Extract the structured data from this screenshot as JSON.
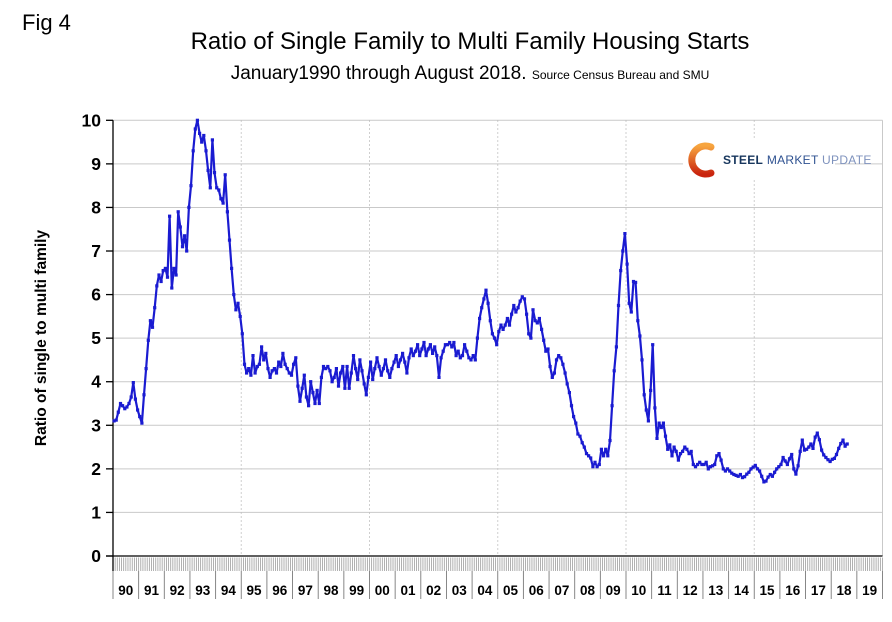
{
  "fig_label": "Fig 4",
  "title": "Ratio of Single Family to Multi Family Housing Starts",
  "subtitle": "January1990 through August 2018.",
  "source_note": "Source Census Bureau and SMU",
  "y_axis": {
    "title": "Ratio of single to multi family"
  },
  "logo": {
    "steel": "STEEL",
    "market": "MARKET",
    "update": "UPDATE"
  },
  "colors": {
    "line": "#1a1bd1",
    "grid": "#c9c9c9",
    "dotted_grid": "#bfbfbf",
    "axis": "#000000",
    "month_tick": "#9c9c9c",
    "year_separator": "#7a7a7a",
    "logo_steel": "#17365d",
    "logo_market": "#2f5291",
    "logo_update": "#7e92bd",
    "logo_swoosh_top": "#f7a53f",
    "logo_swoosh_bottom": "#c9240e"
  },
  "chart_data": {
    "type": "line",
    "title": "Ratio of Single Family to Multi Family Housing Starts",
    "subtitle": "January1990 through August 2018. Source Census Bureau and SMU",
    "ylabel": "Ratio of single to multi family",
    "xlabel": "",
    "frequency": "monthly",
    "start": {
      "year": 1990,
      "month": 1
    },
    "end": {
      "year": 2018,
      "month": 8
    },
    "ylim": [
      0,
      10
    ],
    "x_domain_years": [
      1990,
      2020
    ],
    "grid": {
      "horizontal_step": 1,
      "vertical_dotted_years": [
        1995,
        2000,
        2005,
        2010,
        2015
      ]
    },
    "legend_position": "none",
    "marker": "square",
    "y_tick_labels": [
      "0",
      "1",
      "2",
      "3",
      "4",
      "5",
      "6",
      "7",
      "8",
      "9",
      "10"
    ],
    "x_tick_labels": [
      "90",
      "91",
      "92",
      "93",
      "94",
      "95",
      "96",
      "97",
      "98",
      "99",
      "00",
      "01",
      "02",
      "03",
      "04",
      "05",
      "06",
      "07",
      "08",
      "09",
      "10",
      "11",
      "12",
      "13",
      "14",
      "15",
      "16",
      "17",
      "18",
      "19"
    ],
    "values": [
      3.1,
      3.12,
      3.3,
      3.5,
      3.45,
      3.38,
      3.42,
      3.5,
      3.65,
      3.98,
      3.6,
      3.35,
      3.2,
      3.05,
      3.7,
      4.3,
      4.95,
      5.4,
      5.25,
      5.7,
      6.2,
      6.45,
      6.3,
      6.55,
      6.6,
      6.4,
      7.8,
      6.15,
      6.6,
      6.45,
      7.9,
      7.55,
      7.1,
      7.35,
      7.0,
      8.0,
      8.5,
      9.3,
      9.8,
      10.0,
      9.7,
      9.5,
      9.65,
      9.3,
      8.85,
      8.45,
      9.55,
      8.8,
      8.45,
      8.4,
      8.2,
      8.1,
      8.75,
      7.9,
      7.25,
      6.6,
      6.0,
      5.65,
      5.8,
      5.5,
      5.1,
      4.4,
      4.2,
      4.3,
      4.15,
      4.6,
      4.2,
      4.35,
      4.4,
      4.8,
      4.5,
      4.65,
      4.3,
      4.1,
      4.25,
      4.3,
      4.2,
      4.45,
      4.35,
      4.65,
      4.4,
      4.3,
      4.2,
      4.15,
      4.4,
      4.55,
      3.9,
      3.55,
      3.85,
      4.15,
      3.65,
      3.45,
      4.0,
      3.75,
      3.5,
      3.8,
      3.5,
      4.1,
      4.35,
      4.3,
      4.35,
      4.25,
      4.0,
      4.1,
      4.3,
      3.9,
      4.2,
      4.35,
      3.85,
      4.35,
      3.85,
      4.2,
      4.6,
      4.3,
      4.05,
      4.5,
      4.25,
      3.95,
      3.7,
      4.1,
      4.45,
      4.05,
      4.3,
      4.55,
      4.35,
      4.15,
      4.3,
      4.5,
      4.25,
      4.1,
      4.3,
      4.45,
      4.6,
      4.35,
      4.5,
      4.65,
      4.45,
      4.2,
      4.55,
      4.75,
      4.6,
      4.7,
      4.85,
      4.6,
      4.75,
      4.9,
      4.6,
      4.75,
      4.85,
      4.65,
      4.8,
      4.6,
      4.1,
      4.55,
      4.7,
      4.85,
      4.85,
      4.9,
      4.8,
      4.9,
      4.6,
      4.7,
      4.55,
      4.6,
      4.85,
      4.7,
      4.55,
      4.5,
      4.6,
      4.5,
      5.0,
      5.45,
      5.7,
      5.9,
      6.1,
      5.8,
      5.4,
      5.1,
      5.0,
      4.85,
      5.15,
      5.3,
      5.2,
      5.3,
      5.45,
      5.3,
      5.55,
      5.75,
      5.6,
      5.7,
      5.85,
      5.95,
      5.9,
      5.55,
      5.1,
      5.0,
      5.65,
      5.4,
      5.35,
      5.45,
      5.2,
      4.95,
      4.7,
      4.75,
      4.35,
      4.1,
      4.2,
      4.5,
      4.6,
      4.55,
      4.4,
      4.2,
      3.95,
      3.75,
      3.45,
      3.2,
      3.05,
      2.8,
      2.75,
      2.6,
      2.5,
      2.35,
      2.3,
      2.25,
      2.05,
      2.15,
      2.05,
      2.1,
      2.45,
      2.3,
      2.45,
      2.3,
      2.65,
      3.45,
      4.25,
      4.8,
      5.75,
      6.55,
      7.0,
      7.4,
      6.7,
      5.8,
      5.6,
      6.3,
      6.28,
      5.4,
      5.05,
      4.5,
      3.7,
      3.35,
      3.1,
      3.8,
      4.85,
      3.4,
      2.7,
      3.05,
      2.95,
      3.05,
      2.75,
      2.45,
      2.55,
      2.3,
      2.5,
      2.4,
      2.2,
      2.35,
      2.4,
      2.5,
      2.45,
      2.35,
      2.4,
      2.1,
      2.05,
      2.1,
      2.15,
      2.1,
      2.1,
      2.15,
      2.0,
      2.05,
      2.07,
      2.1,
      2.3,
      2.35,
      2.2,
      2.0,
      1.95,
      2.0,
      1.95,
      1.9,
      1.87,
      1.85,
      1.83,
      1.87,
      1.8,
      1.82,
      1.88,
      1.92,
      2.0,
      2.04,
      2.08,
      2.0,
      1.95,
      1.83,
      1.7,
      1.72,
      1.81,
      1.87,
      1.83,
      1.92,
      2.0,
      2.05,
      2.1,
      2.26,
      2.18,
      2.1,
      2.23,
      2.33,
      2.0,
      1.88,
      2.07,
      2.4,
      2.66,
      2.43,
      2.45,
      2.5,
      2.57,
      2.47,
      2.73,
      2.82,
      2.67,
      2.43,
      2.32,
      2.26,
      2.21,
      2.17,
      2.22,
      2.24,
      2.33,
      2.47,
      2.58,
      2.66,
      2.52,
      2.57
    ]
  }
}
